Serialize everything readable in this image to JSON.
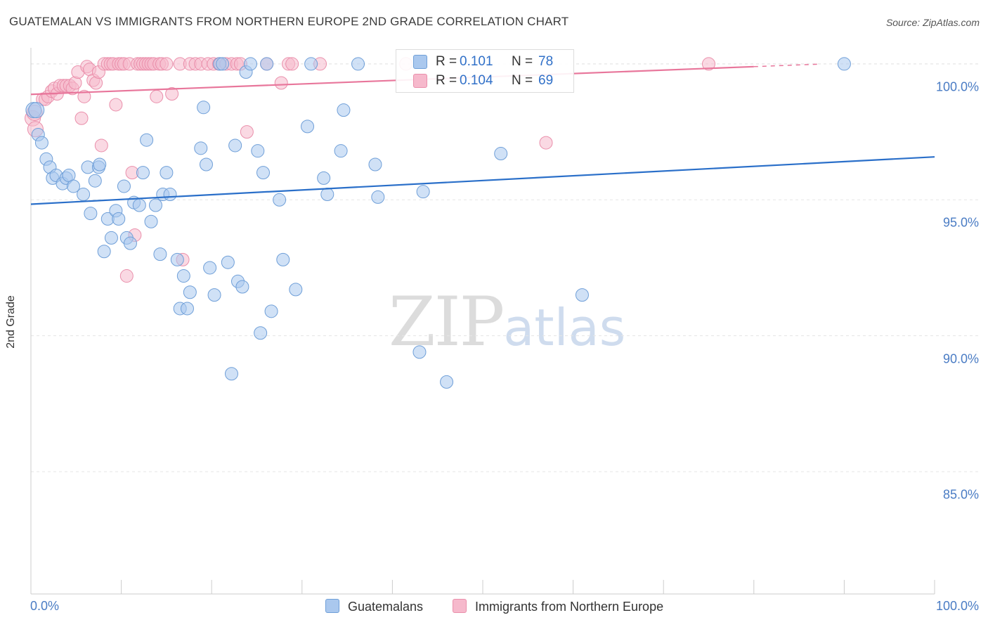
{
  "header": {
    "title": "GUATEMALAN VS IMMIGRANTS FROM NORTHERN EUROPE 2ND GRADE CORRELATION CHART",
    "source": "Source: ZipAtlas.com"
  },
  "watermark": {
    "zip": "ZIP",
    "atlas": "atlas"
  },
  "colors": {
    "blue_fill": "#aac8ee",
    "blue_stroke": "#6f9fd8",
    "blue_line": "#2a6fc9",
    "pink_fill": "#f6b9cc",
    "pink_stroke": "#ea8fab",
    "pink_line": "#e8769b",
    "tick_label": "#4a7cc4",
    "grid": "#e5e5e5"
  },
  "legend": {
    "rows": [
      {
        "r_label": "R =",
        "r_value": "0.101",
        "n_label": "N =",
        "n_value": "78"
      },
      {
        "r_label": "R =",
        "r_value": "0.104",
        "n_label": "N =",
        "n_value": "69"
      }
    ]
  },
  "bottom_legend": {
    "items": [
      "Guatemalans",
      "Immigrants from Northern Europe"
    ]
  },
  "chart_data": {
    "type": "scatter",
    "title": "GUATEMALAN VS IMMIGRANTS FROM NORTHERN EUROPE 2ND GRADE CORRELATION CHART",
    "xlabel": "",
    "ylabel": "2nd Grade",
    "xlim": [
      0,
      100
    ],
    "ylim": [
      80.5,
      100.8
    ],
    "x_tick_labels": [
      "0.0%",
      "100.0%"
    ],
    "y_ticks": [
      85,
      90,
      95,
      100
    ],
    "y_tick_labels": [
      "85.0%",
      "90.0%",
      "95.0%",
      "100.0%"
    ],
    "grid": true,
    "legend_position": "bottom-center",
    "series": [
      {
        "name": "Guatemalans",
        "r": 0.101,
        "n": 78,
        "trend": {
          "x": [
            0,
            100
          ],
          "y": [
            94.84,
            96.58
          ]
        },
        "points": [
          [
            0.3,
            98.3
          ],
          [
            0.6,
            98.3
          ],
          [
            0.8,
            97.4
          ],
          [
            1.2,
            97.1
          ],
          [
            1.7,
            96.5
          ],
          [
            2.1,
            96.2
          ],
          [
            2.4,
            95.8
          ],
          [
            2.8,
            95.9
          ],
          [
            3.5,
            95.6
          ],
          [
            3.9,
            95.8
          ],
          [
            4.2,
            95.9
          ],
          [
            4.7,
            95.5
          ],
          [
            5.8,
            95.2
          ],
          [
            6.3,
            96.2
          ],
          [
            6.6,
            94.5
          ],
          [
            7.1,
            95.7
          ],
          [
            7.5,
            96.2
          ],
          [
            7.6,
            96.3
          ],
          [
            8.1,
            93.1
          ],
          [
            8.5,
            94.3
          ],
          [
            8.9,
            93.6
          ],
          [
            9.4,
            94.6
          ],
          [
            9.7,
            94.3
          ],
          [
            10.3,
            95.5
          ],
          [
            10.6,
            93.6
          ],
          [
            11.0,
            93.4
          ],
          [
            11.4,
            94.9
          ],
          [
            12.0,
            94.8
          ],
          [
            12.4,
            96.0
          ],
          [
            12.8,
            97.2
          ],
          [
            13.3,
            94.2
          ],
          [
            13.8,
            94.8
          ],
          [
            14.3,
            93.0
          ],
          [
            14.6,
            95.2
          ],
          [
            15.0,
            96.0
          ],
          [
            15.4,
            95.2
          ],
          [
            16.2,
            92.8
          ],
          [
            16.5,
            91.0
          ],
          [
            16.9,
            92.2
          ],
          [
            17.3,
            91.0
          ],
          [
            17.6,
            91.6
          ],
          [
            18.8,
            96.9
          ],
          [
            19.1,
            98.4
          ],
          [
            19.4,
            96.3
          ],
          [
            19.8,
            92.5
          ],
          [
            20.3,
            91.5
          ],
          [
            20.9,
            100.0
          ],
          [
            21.2,
            100.0
          ],
          [
            21.8,
            92.7
          ],
          [
            22.2,
            88.6
          ],
          [
            22.6,
            97.0
          ],
          [
            22.9,
            92.0
          ],
          [
            23.4,
            91.8
          ],
          [
            23.8,
            99.7
          ],
          [
            24.3,
            100.0
          ],
          [
            25.1,
            96.8
          ],
          [
            25.4,
            90.1
          ],
          [
            25.7,
            96.0
          ],
          [
            26.1,
            100.0
          ],
          [
            26.6,
            90.9
          ],
          [
            27.5,
            95.0
          ],
          [
            27.9,
            92.8
          ],
          [
            29.3,
            91.7
          ],
          [
            30.6,
            97.7
          ],
          [
            31.0,
            100.0
          ],
          [
            32.4,
            95.8
          ],
          [
            32.8,
            95.2
          ],
          [
            34.3,
            96.8
          ],
          [
            34.6,
            98.3
          ],
          [
            36.2,
            100.0
          ],
          [
            38.1,
            96.3
          ],
          [
            38.4,
            95.1
          ],
          [
            43.0,
            89.4
          ],
          [
            43.4,
            95.3
          ],
          [
            46.0,
            88.3
          ],
          [
            52.0,
            96.7
          ],
          [
            61.0,
            91.5
          ],
          [
            90.0,
            100.0
          ]
        ]
      },
      {
        "name": "Immigrants from Northern Europe",
        "r": 0.104,
        "n": 69,
        "trend": {
          "x": [
            0,
            80
          ],
          "y": [
            98.88,
            99.9
          ]
        },
        "points": [
          [
            0.2,
            98.0
          ],
          [
            0.4,
            98.2
          ],
          [
            0.5,
            97.6
          ],
          [
            1.3,
            98.7
          ],
          [
            1.6,
            98.7
          ],
          [
            1.9,
            98.8
          ],
          [
            2.3,
            99.0
          ],
          [
            2.6,
            99.1
          ],
          [
            2.9,
            98.9
          ],
          [
            3.2,
            99.2
          ],
          [
            3.6,
            99.2
          ],
          [
            3.9,
            99.2
          ],
          [
            4.3,
            99.2
          ],
          [
            4.6,
            99.1
          ],
          [
            4.9,
            99.3
          ],
          [
            5.2,
            99.7
          ],
          [
            5.6,
            98.0
          ],
          [
            5.9,
            98.8
          ],
          [
            6.2,
            99.9
          ],
          [
            6.5,
            99.8
          ],
          [
            6.9,
            99.4
          ],
          [
            7.2,
            99.3
          ],
          [
            7.5,
            99.7
          ],
          [
            7.8,
            97.0
          ],
          [
            8.1,
            100.0
          ],
          [
            8.5,
            100.0
          ],
          [
            8.8,
            100.0
          ],
          [
            9.1,
            100.0
          ],
          [
            9.4,
            98.5
          ],
          [
            9.7,
            100.0
          ],
          [
            10.0,
            100.0
          ],
          [
            10.3,
            100.0
          ],
          [
            10.6,
            92.2
          ],
          [
            10.9,
            100.0
          ],
          [
            11.2,
            96.0
          ],
          [
            11.5,
            93.7
          ],
          [
            11.8,
            100.0
          ],
          [
            12.1,
            100.0
          ],
          [
            12.4,
            100.0
          ],
          [
            12.7,
            100.0
          ],
          [
            13.0,
            100.0
          ],
          [
            13.3,
            100.0
          ],
          [
            13.6,
            100.0
          ],
          [
            13.9,
            98.8
          ],
          [
            14.2,
            100.0
          ],
          [
            14.5,
            100.0
          ],
          [
            15.0,
            100.0
          ],
          [
            15.6,
            98.9
          ],
          [
            16.5,
            100.0
          ],
          [
            16.8,
            92.8
          ],
          [
            17.6,
            100.0
          ],
          [
            18.2,
            100.0
          ],
          [
            18.8,
            100.0
          ],
          [
            19.6,
            100.0
          ],
          [
            20.2,
            100.0
          ],
          [
            20.8,
            100.0
          ],
          [
            21.6,
            100.0
          ],
          [
            22.2,
            100.0
          ],
          [
            22.8,
            100.0
          ],
          [
            23.2,
            100.0
          ],
          [
            23.9,
            97.5
          ],
          [
            26.1,
            100.0
          ],
          [
            27.7,
            99.3
          ],
          [
            28.5,
            100.0
          ],
          [
            28.9,
            100.0
          ],
          [
            32.0,
            100.0
          ],
          [
            41.5,
            100.0
          ],
          [
            57.0,
            97.1
          ],
          [
            75.0,
            100.0
          ]
        ]
      }
    ]
  }
}
